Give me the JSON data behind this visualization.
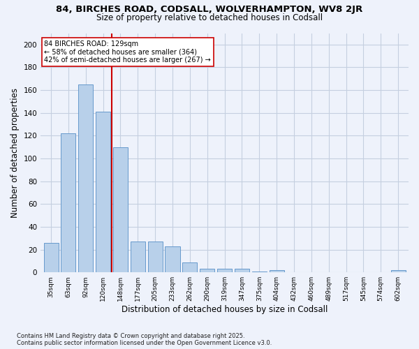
{
  "title1": "84, BIRCHES ROAD, CODSALL, WOLVERHAMPTON, WV8 2JR",
  "title2": "Size of property relative to detached houses in Codsall",
  "xlabel": "Distribution of detached houses by size in Codsall",
  "ylabel": "Number of detached properties",
  "categories": [
    "35sqm",
    "63sqm",
    "92sqm",
    "120sqm",
    "148sqm",
    "177sqm",
    "205sqm",
    "233sqm",
    "262sqm",
    "290sqm",
    "319sqm",
    "347sqm",
    "375sqm",
    "404sqm",
    "432sqm",
    "460sqm",
    "489sqm",
    "517sqm",
    "545sqm",
    "574sqm",
    "602sqm"
  ],
  "values": [
    26,
    122,
    165,
    141,
    110,
    27,
    27,
    23,
    9,
    3,
    3,
    3,
    1,
    2,
    0,
    0,
    0,
    0,
    0,
    0,
    2
  ],
  "bar_color": "#b8d0ea",
  "bar_edge_color": "#6699cc",
  "annotation_line1": "84 BIRCHES ROAD: 129sqm",
  "annotation_line2": "← 58% of detached houses are smaller (364)",
  "annotation_line3": "42% of semi-detached houses are larger (267) →",
  "vline_x": 3.5,
  "vline_color": "#cc0000",
  "annot_box_color": "#ffffff",
  "annot_box_edge": "#cc0000",
  "ylim": [
    0,
    210
  ],
  "yticks": [
    0,
    20,
    40,
    60,
    80,
    100,
    120,
    140,
    160,
    180,
    200
  ],
  "footer": "Contains HM Land Registry data © Crown copyright and database right 2025.\nContains public sector information licensed under the Open Government Licence v3.0.",
  "bg_color": "#eef2fb",
  "plot_bg_color": "#eef2fb",
  "grid_color": "#c5cfe0"
}
